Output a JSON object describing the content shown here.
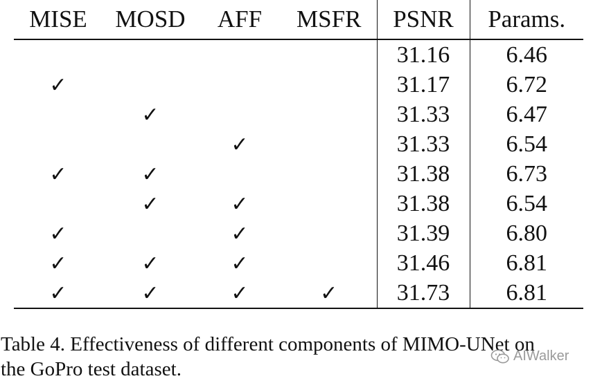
{
  "table": {
    "columns": [
      "MISE",
      "MOSD",
      "AFF",
      "MSFR",
      "PSNR",
      "Params."
    ],
    "check_mark": "✓",
    "rows": [
      {
        "mise": false,
        "mosd": false,
        "aff": false,
        "msfr": false,
        "psnr": "31.16",
        "params": "6.46",
        "best": false
      },
      {
        "mise": true,
        "mosd": false,
        "aff": false,
        "msfr": false,
        "psnr": "31.17",
        "params": "6.72",
        "best": false
      },
      {
        "mise": false,
        "mosd": true,
        "aff": false,
        "msfr": false,
        "psnr": "31.33",
        "params": "6.47",
        "best": false
      },
      {
        "mise": false,
        "mosd": false,
        "aff": true,
        "msfr": false,
        "psnr": "31.33",
        "params": "6.54",
        "best": false
      },
      {
        "mise": true,
        "mosd": true,
        "aff": false,
        "msfr": false,
        "psnr": "31.38",
        "params": "6.73",
        "best": false
      },
      {
        "mise": false,
        "mosd": true,
        "aff": true,
        "msfr": false,
        "psnr": "31.38",
        "params": "6.54",
        "best": false
      },
      {
        "mise": true,
        "mosd": false,
        "aff": true,
        "msfr": false,
        "psnr": "31.39",
        "params": "6.80",
        "best": false
      },
      {
        "mise": true,
        "mosd": true,
        "aff": true,
        "msfr": false,
        "psnr": "31.46",
        "params": "6.81",
        "best": false
      },
      {
        "mise": true,
        "mosd": true,
        "aff": true,
        "msfr": true,
        "psnr": "31.73",
        "params": "6.81",
        "best": true
      }
    ]
  },
  "caption": {
    "line1": "Table 4. Effectiveness of different components of MIMO-UNet on",
    "line2": "the GoPro test dataset."
  },
  "watermark": {
    "text": "AIWalker",
    "icon": "wechat-icon"
  }
}
